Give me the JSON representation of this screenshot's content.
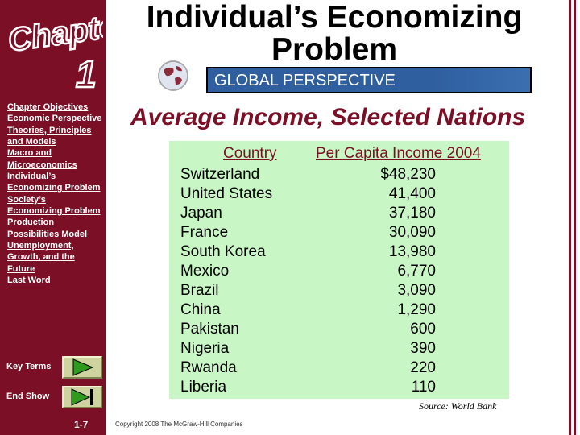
{
  "header": {
    "title_line1": "Individual’s Economizing",
    "title_line2": "Problem",
    "banner": "GLOBAL PERSPECTIVE"
  },
  "chapter_logo": "Chapter 1",
  "sidebar": {
    "links": [
      "Chapter Objectives",
      "Economic Perspective",
      "Theories, Principles and Models",
      "Macro and Microeconomics",
      "Individual’s Economizing Problem",
      "Society’s Economizing Problem",
      "Production Possibilities Model",
      "Unemployment, Growth, and the Future",
      "Last Word"
    ],
    "key_terms": "Key Terms",
    "end_show": "End Show",
    "page_number": "1-7"
  },
  "content": {
    "subtitle": "Average Income, Selected Nations",
    "col_country": "Country",
    "col_income": "Per Capita Income 2004",
    "rows": [
      {
        "country": "Switzerland",
        "income": "$48,230"
      },
      {
        "country": "United States",
        "income": "41,400"
      },
      {
        "country": "Japan",
        "income": "37,180"
      },
      {
        "country": "France",
        "income": "30,090"
      },
      {
        "country": "South Korea",
        "income": "13,980"
      },
      {
        "country": "Mexico",
        "income": "6,770"
      },
      {
        "country": "Brazil",
        "income": "3,090"
      },
      {
        "country": "China",
        "income": "1,290"
      },
      {
        "country": "Pakistan",
        "income": "600"
      },
      {
        "country": "Nigeria",
        "income": "390"
      },
      {
        "country": "Rwanda",
        "income": "220"
      },
      {
        "country": "Liberia",
        "income": "110"
      }
    ],
    "source": "Source: World Bank"
  },
  "footer": {
    "copyright": "Copyright 2008 The McGraw-Hill Companies"
  },
  "colors": {
    "sidebar": "#7a0f26",
    "banner": "#2f5f9f",
    "table_bg": "#c8f7c5",
    "nav_button": "#cfd3a0",
    "play_icon": "#2e9a1e"
  }
}
